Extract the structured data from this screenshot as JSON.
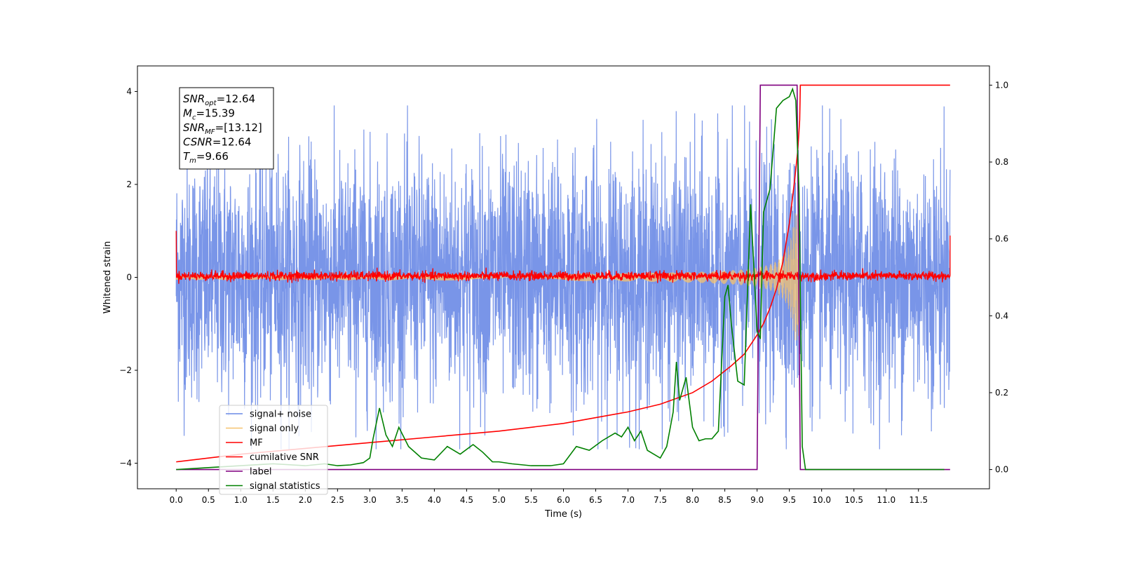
{
  "chart_data": {
    "type": "line",
    "title": "",
    "xlabel": "Time (s)",
    "ylabel": "Whitened strain",
    "ylabel_right": "",
    "xlim": [
      -0.6,
      12.6
    ],
    "ylim": [
      -4.55,
      4.55
    ],
    "ylim_right": [
      -0.05,
      1.05
    ],
    "x_ticks": [
      0.0,
      0.5,
      1.0,
      1.5,
      2.0,
      2.5,
      3.0,
      3.5,
      4.0,
      4.5,
      5.0,
      5.5,
      6.0,
      6.5,
      7.0,
      7.5,
      8.0,
      8.5,
      9.0,
      9.5,
      10.0,
      10.5,
      11.0,
      11.5
    ],
    "x_tick_labels": [
      "0.0",
      "0.5",
      "1.0",
      "1.5",
      "2.0",
      "2.5",
      "3.0",
      "3.5",
      "4.0",
      "4.5",
      "5.0",
      "5.5",
      "6.0",
      "6.5",
      "7.0",
      "7.5",
      "8.0",
      "8.5",
      "9.0",
      "9.5",
      "10.0",
      "10.5",
      "11.0",
      "11.5"
    ],
    "y_ticks": [
      -4,
      -2,
      0,
      2,
      4
    ],
    "y_tick_labels": [
      "−4",
      "−2",
      "0",
      "2",
      "4"
    ],
    "y_right_ticks": [
      0.0,
      0.2,
      0.4,
      0.6,
      0.8,
      1.0
    ],
    "y_right_tick_labels": [
      "0.0",
      "0.2",
      "0.4",
      "0.6",
      "0.8",
      "1.0"
    ],
    "grid": false,
    "legend_position": "lower-left",
    "annotation": [
      {
        "sym": "SNR",
        "sub": "opt",
        "text": "=12.64"
      },
      {
        "sym": "M",
        "sub": "c",
        "text": "=15.39"
      },
      {
        "sym": "SNR",
        "sub": "MF",
        "text": "=[13.12]"
      },
      {
        "sym": "CSNR",
        "sub": "",
        "text": "=12.64"
      },
      {
        "sym": "T",
        "sub": "m",
        "text": "=9.66"
      }
    ],
    "series": [
      {
        "name": "signal+ noise",
        "color": "#6a8ae6",
        "axis": "left",
        "kind": "noise",
        "t_start": 0.0,
        "t_end": 11.99,
        "std": 1.3,
        "note_max_abs": 3.7
      },
      {
        "name": "signal only",
        "color": "#f6c36f",
        "axis": "left",
        "kind": "chirp",
        "t_start": 0.0,
        "t_end": 9.66,
        "amplitude_start": 0.05,
        "amplitude_peak": 1.4
      },
      {
        "name": "MF",
        "color": "#ff0000",
        "axis": "left",
        "kind": "mf",
        "t_start": 0.0,
        "t_end": 11.99,
        "baseline": 0.03,
        "std": 0.05,
        "edge_value": 1.0,
        "edge_value_end": 0.9
      },
      {
        "name": "cumilative SNR",
        "color": "#ff0000",
        "axis": "right",
        "x": [
          0.0,
          1.0,
          2.0,
          3.0,
          4.0,
          5.0,
          6.0,
          6.5,
          7.0,
          7.5,
          8.0,
          8.3,
          8.6,
          8.8,
          9.0,
          9.1,
          9.2,
          9.3,
          9.4,
          9.5,
          9.58,
          9.63,
          9.66,
          9.67,
          11.99
        ],
        "y": [
          0.02,
          0.04,
          0.055,
          0.07,
          0.085,
          0.1,
          0.12,
          0.135,
          0.15,
          0.17,
          0.2,
          0.23,
          0.27,
          0.3,
          0.35,
          0.38,
          0.42,
          0.47,
          0.54,
          0.64,
          0.75,
          0.83,
          0.91,
          1.0,
          1.0
        ]
      },
      {
        "name": "label",
        "color": "#800080",
        "axis": "right",
        "x": [
          0.0,
          9.0,
          9.05,
          9.62,
          9.67,
          11.99
        ],
        "y": [
          0.0,
          0.0,
          1.0,
          1.0,
          0.0,
          0.0
        ]
      },
      {
        "name": "signal statistics",
        "color": "#008000",
        "axis": "right",
        "x": [
          0.0,
          0.5,
          1.0,
          1.5,
          2.0,
          2.3,
          2.5,
          2.7,
          2.9,
          3.0,
          3.05,
          3.15,
          3.25,
          3.35,
          3.45,
          3.6,
          3.8,
          4.0,
          4.2,
          4.4,
          4.6,
          4.75,
          4.9,
          5.0,
          5.2,
          5.5,
          5.8,
          6.0,
          6.2,
          6.4,
          6.6,
          6.8,
          6.9,
          7.0,
          7.1,
          7.2,
          7.3,
          7.5,
          7.6,
          7.7,
          7.75,
          7.8,
          7.9,
          8.0,
          8.1,
          8.2,
          8.3,
          8.4,
          8.5,
          8.55,
          8.6,
          8.7,
          8.8,
          8.9,
          9.0,
          9.05,
          9.1,
          9.2,
          9.3,
          9.4,
          9.5,
          9.55,
          9.6,
          9.65,
          9.7,
          9.75,
          9.8,
          11.9
        ],
        "y": [
          0.0,
          0.005,
          0.01,
          0.015,
          0.01,
          0.015,
          0.01,
          0.012,
          0.018,
          0.03,
          0.08,
          0.16,
          0.09,
          0.06,
          0.11,
          0.06,
          0.03,
          0.025,
          0.06,
          0.04,
          0.065,
          0.045,
          0.02,
          0.02,
          0.015,
          0.01,
          0.01,
          0.015,
          0.06,
          0.05,
          0.075,
          0.095,
          0.085,
          0.11,
          0.075,
          0.1,
          0.05,
          0.03,
          0.06,
          0.15,
          0.28,
          0.18,
          0.24,
          0.11,
          0.075,
          0.08,
          0.08,
          0.1,
          0.45,
          0.48,
          0.38,
          0.23,
          0.22,
          0.69,
          0.36,
          0.34,
          0.67,
          0.73,
          0.94,
          0.96,
          0.97,
          0.99,
          0.96,
          0.72,
          0.06,
          0.0,
          0.0,
          0.0
        ]
      }
    ]
  }
}
